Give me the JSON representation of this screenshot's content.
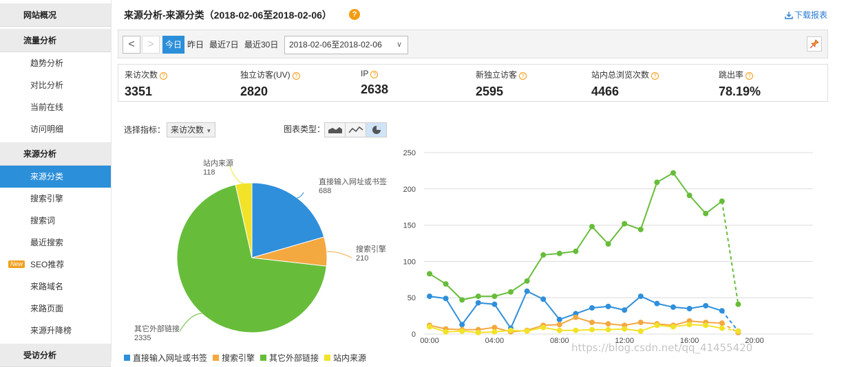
{
  "sidebar": {
    "items": [
      {
        "type": "section",
        "label": "网站概况"
      },
      {
        "type": "section",
        "label": "流量分析"
      },
      {
        "type": "item",
        "label": "趋势分析"
      },
      {
        "type": "item",
        "label": "对比分析"
      },
      {
        "type": "item",
        "label": "当前在线"
      },
      {
        "type": "item",
        "label": "访问明细"
      },
      {
        "type": "section",
        "label": "来源分析"
      },
      {
        "type": "item",
        "label": "来源分类",
        "active": true
      },
      {
        "type": "item",
        "label": "搜索引擎"
      },
      {
        "type": "item",
        "label": "搜索词"
      },
      {
        "type": "item",
        "label": "最近搜索"
      },
      {
        "type": "item",
        "label": "SEO推荐",
        "badge": "New"
      },
      {
        "type": "item",
        "label": "来路域名"
      },
      {
        "type": "item",
        "label": "来路页面"
      },
      {
        "type": "item",
        "label": "来源升降榜"
      },
      {
        "type": "section",
        "label": "受访分析"
      }
    ]
  },
  "header": {
    "title": "来源分析-来源分类（2018-02-06至2018-02-06）",
    "help": "?",
    "download": "下载报表"
  },
  "toolbar": {
    "prev": "<",
    "next": ">",
    "today": "今日",
    "yesterday": "昨日",
    "last7": "最近7日",
    "last30": "最近30日",
    "date_range": "2018-02-06至2018-02-06"
  },
  "stats": [
    {
      "label": "来访次数",
      "value": "3351"
    },
    {
      "label": "独立访客(UV)",
      "value": "2820"
    },
    {
      "label": "IP",
      "value": "2638"
    },
    {
      "label": "新独立访客",
      "value": "2595"
    },
    {
      "label": "站内总浏览次数",
      "value": "4466"
    },
    {
      "label": "跳出率",
      "value": "78.19%"
    }
  ],
  "controls": {
    "indicator_label": "选择指标：",
    "indicator_value": "来访次数",
    "chart_type_label": "图表类型："
  },
  "colors": {
    "blue": "#2f8fdb",
    "orange": "#f3a840",
    "green": "#67bd3a",
    "yellow": "#f2e228",
    "accent": "#2b8fd9"
  },
  "legend": [
    "直接输入网址或书签",
    "搜索引擎",
    "其它外部链接",
    "站内来源"
  ],
  "watermark": "https://blog.csdn.net/qq_41455420",
  "chart_data": [
    {
      "type": "pie",
      "categories": [
        "直接输入网址或书签",
        "搜索引擎",
        "其它外部链接",
        "站内来源"
      ],
      "values": [
        688,
        210,
        2335,
        118
      ],
      "colors": [
        "#2f8fdb",
        "#f3a840",
        "#67bd3a",
        "#f2e228"
      ]
    },
    {
      "type": "line",
      "x": [
        "00:00",
        "01:00",
        "02:00",
        "03:00",
        "04:00",
        "05:00",
        "06:00",
        "07:00",
        "08:00",
        "09:00",
        "10:00",
        "11:00",
        "12:00",
        "13:00",
        "14:00",
        "15:00",
        "16:00",
        "17:00",
        "18:00",
        "19:00"
      ],
      "x_tick_labels": [
        "00:00",
        "04:00",
        "08:00",
        "12:00",
        "16:00",
        "20:00"
      ],
      "ylim": [
        0,
        250
      ],
      "y_ticks": [
        0,
        50,
        100,
        150,
        200,
        250
      ],
      "grid": true,
      "dashed_last_segment": true,
      "series": [
        {
          "name": "直接输入网址或书签",
          "color": "#2f8fdb",
          "values": [
            52,
            49,
            13,
            43,
            41,
            8,
            59,
            48,
            20,
            28,
            36,
            38,
            33,
            52,
            42,
            37,
            35,
            39,
            32,
            4
          ]
        },
        {
          "name": "搜索引擎",
          "color": "#f3a840",
          "values": [
            12,
            7,
            6,
            6,
            9,
            3,
            5,
            12,
            13,
            23,
            16,
            14,
            12,
            16,
            14,
            12,
            18,
            16,
            15,
            2
          ]
        },
        {
          "name": "其它外部链接",
          "color": "#67bd3a",
          "values": [
            83,
            69,
            47,
            52,
            52,
            58,
            73,
            109,
            111,
            114,
            148,
            124,
            152,
            144,
            209,
            222,
            191,
            166,
            183,
            41
          ]
        },
        {
          "name": "站内来源",
          "color": "#f2e228",
          "values": [
            10,
            3,
            4,
            2,
            3,
            5,
            4,
            9,
            5,
            5,
            6,
            6,
            7,
            4,
            12,
            10,
            13,
            12,
            8,
            4
          ]
        }
      ]
    }
  ]
}
